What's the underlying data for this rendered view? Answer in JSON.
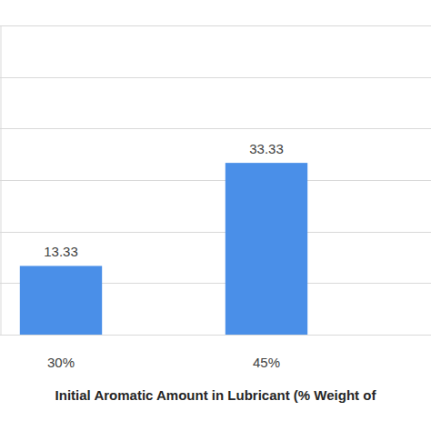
{
  "chart_data": {
    "type": "bar",
    "x_label": "Initial Aromatic Amount in Lubricant (% Weight of",
    "categories": [
      "30%",
      "45%"
    ],
    "values": [
      13.33,
      33.33
    ],
    "color": "#4a8fe8",
    "ylim": [
      0,
      60
    ],
    "yticks": [
      0,
      10,
      20,
      30,
      40,
      50,
      60
    ],
    "grid": true,
    "data_labels": true,
    "tick_labels": "x"
  }
}
